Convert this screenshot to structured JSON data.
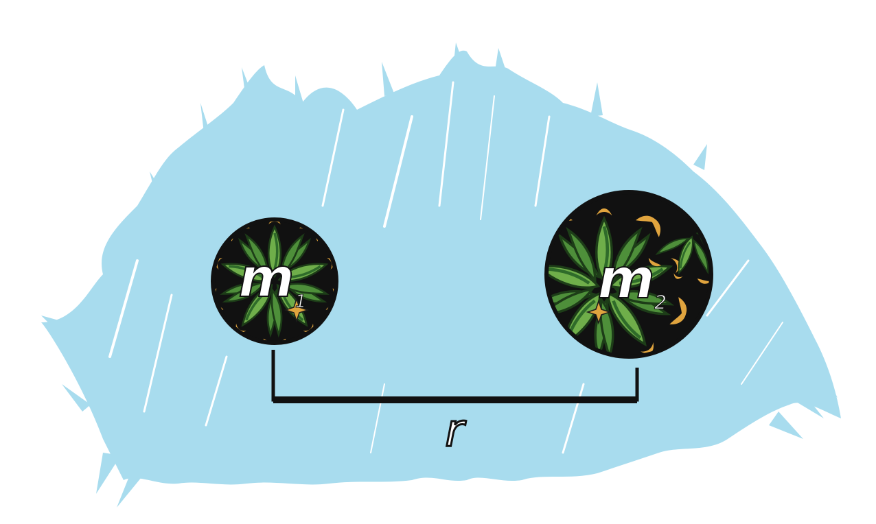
{
  "colors": {
    "background": "#ffffff",
    "splash": "#a8dcee",
    "foliage_dark": "#2f6b2a",
    "foliage_light": "#6fae4a",
    "ornament_gold": "#e0a43e",
    "circle_fill": "#111111",
    "outline": "#111111",
    "label_fill": "#ffffff"
  },
  "masses": [
    {
      "symbol": "m",
      "subscript": "1",
      "icon": "foliage-ornament-circle"
    },
    {
      "symbol": "m",
      "subscript": "2",
      "icon": "foliage-ornament-circle"
    }
  ],
  "distance": {
    "symbol": "r",
    "icon": "bracket-connector"
  },
  "background_icon": "paint-splash-brushstrokes"
}
